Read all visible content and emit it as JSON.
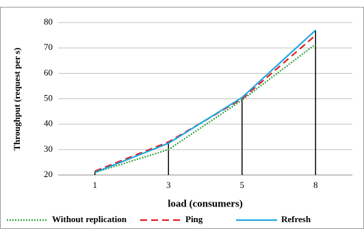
{
  "chart_data": {
    "type": "line",
    "y_label": "Throughput  (request  per s)",
    "x_label": "load (consumers)",
    "categories": [
      "1",
      "3",
      "5",
      "8"
    ],
    "series": [
      {
        "name": "Without replication",
        "color": "#2e9e3e",
        "dash": "2,2",
        "values": [
          21,
          30,
          49.5,
          71.5
        ]
      },
      {
        "name": "Ping",
        "color": "#e31a1c",
        "dash": "10,6",
        "values": [
          21.5,
          33,
          50,
          75
        ]
      },
      {
        "name": "Refresh",
        "color": "#1ea7e1",
        "dash": "none",
        "values": [
          21,
          32.5,
          50.5,
          77
        ]
      }
    ],
    "ylim": [
      20,
      80
    ],
    "yticks": [
      20,
      30,
      40,
      50,
      60,
      70,
      80
    ],
    "grid": true,
    "drop_lines": true
  }
}
